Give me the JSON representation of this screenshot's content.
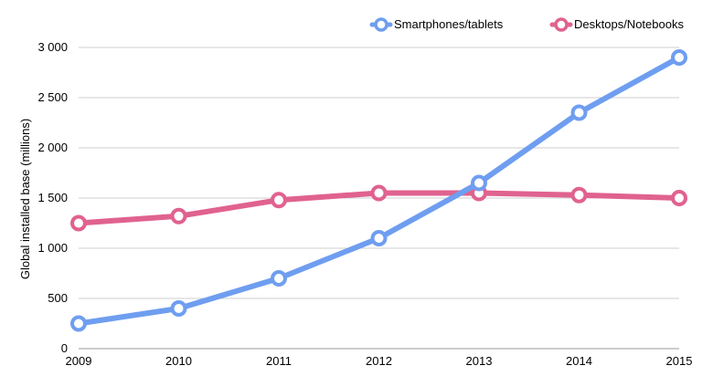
{
  "chart_data": {
    "type": "line",
    "title": "",
    "xlabel": "",
    "ylabel": "Global installed base (millions)",
    "x": [
      "2009",
      "2010",
      "2011",
      "2012",
      "2013",
      "2014",
      "2015"
    ],
    "ylim": [
      0,
      3000
    ],
    "yticks": [
      0,
      500,
      1000,
      1500,
      2000,
      2500,
      3000
    ],
    "ytick_labels": [
      "0",
      "500",
      "1 000",
      "1 500",
      "2 000",
      "2 500",
      "3 000"
    ],
    "grid": "horizontal",
    "legend_position": "top-right",
    "series": [
      {
        "name": "Smartphones/tablets",
        "color": "#6f9ef0",
        "values": [
          250,
          400,
          700,
          1100,
          1650,
          2350,
          2900
        ]
      },
      {
        "name": "Desktops/Notebooks",
        "color": "#e0628f",
        "values": [
          1250,
          1320,
          1480,
          1550,
          1550,
          1530,
          1500
        ]
      }
    ]
  }
}
